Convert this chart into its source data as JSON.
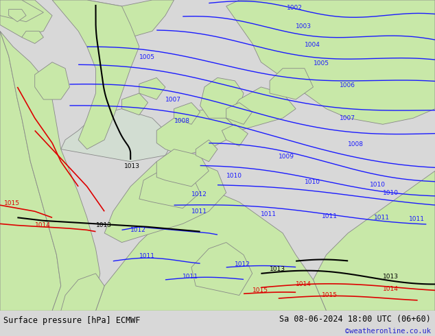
{
  "title_left": "Surface pressure [hPa] ECMWF",
  "title_right": "Sa 08-06-2024 18:00 UTC (06+60)",
  "copyright": "©weatheronline.co.uk",
  "bg_color": "#d2ddd2",
  "land_color": "#c8e8a8",
  "coast_color": "#888888",
  "contour_color_blue": "#1a1aff",
  "contour_color_black": "#000000",
  "contour_color_red": "#dd0000",
  "bottom_bar_color": "#d8d8d8",
  "bottom_text_color": "#000000",
  "figsize": [
    6.34,
    4.9
  ],
  "dpi": 100
}
